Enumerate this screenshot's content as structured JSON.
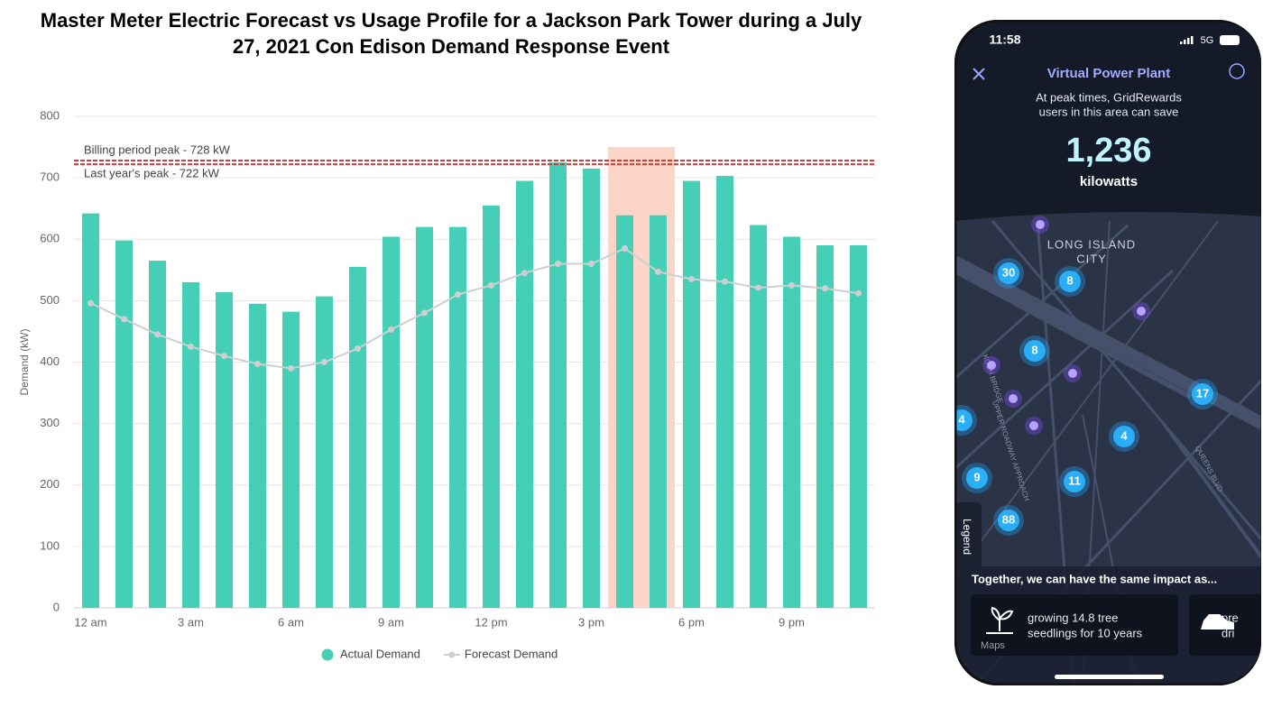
{
  "chart_data": {
    "type": "bar",
    "title": "Master Meter Electric Forecast vs Usage Profile for a Jackson Park Tower during a July 27, 2021 Con Edison Demand Response Event",
    "y_axis_label": "Demand (kW)",
    "categories": [
      "12 am",
      null,
      null,
      "3 am",
      null,
      null,
      "6 am",
      null,
      null,
      "9 am",
      null,
      null,
      "12 pm",
      null,
      null,
      "3 pm",
      null,
      null,
      "6 pm",
      null,
      null,
      "9 pm",
      null,
      null
    ],
    "series": [
      {
        "name": "Actual Demand",
        "type": "bar",
        "color": "#45cfb6",
        "values": [
          642,
          598,
          565,
          530,
          514,
          495,
          482,
          507,
          555,
          604,
          620,
          620,
          655,
          695,
          725,
          715,
          639,
          639,
          695,
          703,
          623,
          604,
          590,
          590
        ]
      },
      {
        "name": "Forecast Demand",
        "type": "line",
        "color": "#cfcfcf",
        "values": [
          496,
          470,
          445,
          425,
          410,
          397,
          390,
          400,
          422,
          453,
          480,
          510,
          525,
          545,
          560,
          560,
          585,
          547,
          535,
          531,
          521,
          525,
          520,
          512
        ]
      }
    ],
    "reference_lines": [
      {
        "value": 728,
        "label": "Billing period peak - 728 kW",
        "color": "#d63c35"
      },
      {
        "value": 722,
        "label": "Last year's peak - 722 kW",
        "color": "#d63c35"
      }
    ],
    "highlight": {
      "start_index": 16,
      "end_index": 17,
      "color": "#fbd5c8"
    },
    "ylim": [
      0,
      800
    ],
    "yticks": [
      0,
      100,
      200,
      300,
      400,
      500,
      600,
      700,
      800
    ],
    "grid": true,
    "legend": "bottom"
  },
  "phone": {
    "time": "11:58",
    "network": "5G",
    "title": "Virtual Power Plant",
    "subtitle_lines": [
      "At peak times, GridRewards",
      "users in this area can save"
    ],
    "amount": "1,236",
    "unit": "kilowatts",
    "map": {
      "area_lines": [
        "LONG ISLAND",
        "CITY"
      ],
      "streets": [
        "KOCH BRIDGE",
        "UPPER ROADWAY APPROACH",
        "QUEENS BLVD"
      ],
      "markers": [
        30,
        8,
        8,
        17,
        4,
        4,
        9,
        11,
        88
      ]
    },
    "legend_tab": "Legend",
    "impact": "Together, we can have the same impact as...",
    "cards": [
      {
        "lines": [
          "growing 14.8 tree",
          "seedlings for 10 years"
        ]
      },
      {
        "lines": [
          "pre",
          "dri"
        ]
      }
    ],
    "maps_credit": "Maps"
  }
}
